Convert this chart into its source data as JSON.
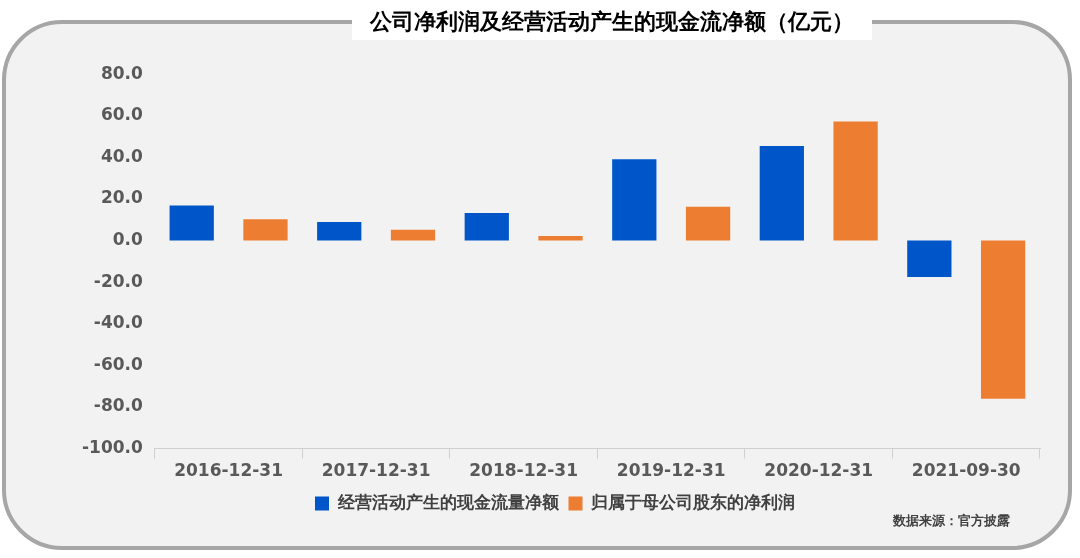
{
  "chart_data": {
    "type": "bar",
    "title": "公司净利润及经营活动产生的现金流净额（亿元）",
    "categories": [
      "2016-12-31",
      "2017-12-31",
      "2018-12-31",
      "2019-12-31",
      "2020-12-31",
      "2021-09-30"
    ],
    "series": [
      {
        "name": "经营活动产生的现金流量净额",
        "color": "#0055c8",
        "values": [
          16.9,
          9.0,
          13.3,
          39.1,
          45.5,
          -17.5
        ]
      },
      {
        "name": "归属于母公司股东的净利润",
        "color": "#ed7d31",
        "values": [
          10.3,
          5.2,
          2.2,
          16.3,
          57.2,
          -76.0
        ]
      }
    ],
    "ylim": [
      -100,
      80
    ],
    "yticks": [
      {
        "value": -100,
        "label": "-100.0"
      },
      {
        "value": -80,
        "label": "-80.0"
      },
      {
        "value": -60,
        "label": "-60.0"
      },
      {
        "value": -40,
        "label": "-40.0"
      },
      {
        "value": -20,
        "label": "-20.0"
      },
      {
        "value": 0,
        "label": "0.0"
      },
      {
        "value": 20,
        "label": "20.0"
      },
      {
        "value": 40,
        "label": "40.0"
      },
      {
        "value": 60,
        "label": "60.0"
      },
      {
        "value": 80,
        "label": "80.0"
      }
    ],
    "legend": "bottom",
    "annotations": [
      "数据来源：官方披露"
    ]
  }
}
